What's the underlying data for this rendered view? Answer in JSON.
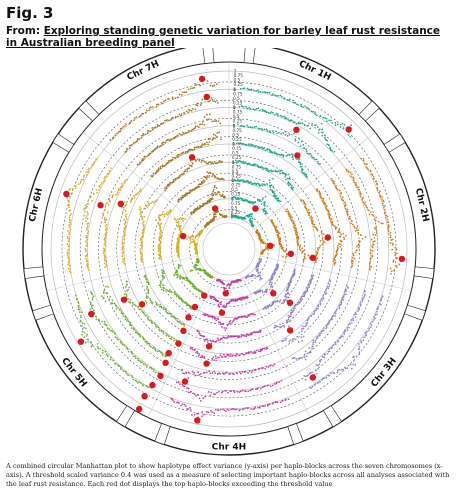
{
  "figure": {
    "label": "Fig. 3",
    "from_prefix": "From: ",
    "article_title": "Exploring standing genetic variation for barley leaf rust resistance in Australian breeding panel",
    "caption": "A combined circular Manhattan plot to show haplotype effect variance (y-axis) per haplo-blocks across the seven chromosomes (x-axis). A threshold scaled variance 0.4 was used as a measure of selecting important haplo-blocks across all analyses associated with the leaf rust resistance. Each red dot displays the top haplo-blocks exceeding the threshold value"
  },
  "chart_data": {
    "type": "scatter",
    "layout": "circular",
    "title": "",
    "xlabel": "",
    "ylabel": "",
    "ylim": [
      0,
      1
    ],
    "threshold": 0.4,
    "chromosomes": [
      "Chr 1H",
      "Chr 2H",
      "Chr 3H",
      "Chr 4H",
      "Chr 5H",
      "Chr 6H",
      "Chr 7H"
    ],
    "chromosome_colors": [
      "#1aa88a",
      "#d07a12",
      "#8f7fcf",
      "#c8399e",
      "#6cae2c",
      "#d4ad19",
      "#a2751f"
    ],
    "tick_labels": [
      "0",
      "0.25",
      "0.5",
      "0.75",
      "1"
    ],
    "rings": 8,
    "highlight_color": "#e0161c",
    "grid": true,
    "series_note": "Each chromosome sector holds one track per analysis ring; points are scaled haplotype effect variances, red points exceed the 0.4 threshold."
  }
}
